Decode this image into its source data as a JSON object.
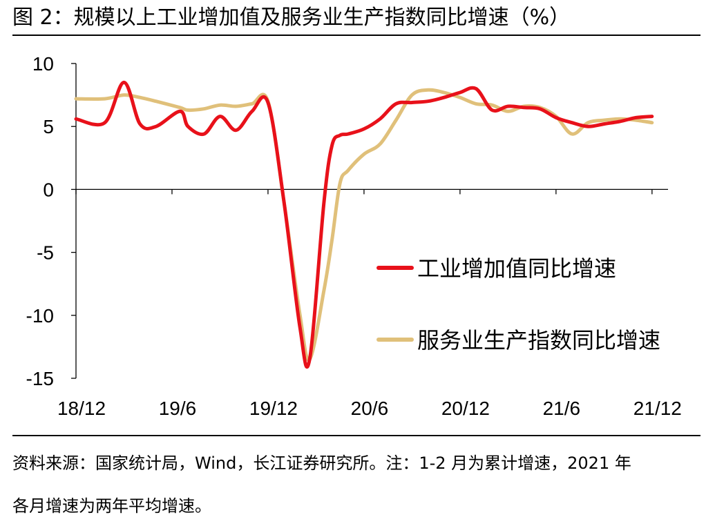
{
  "title": "图 2：规模以上工业增加值及服务业生产指数同比增速（%）",
  "chart_data": {
    "type": "line",
    "title": "规模以上工业增加值及服务业生产指数同比增速（%）",
    "xlabel": "",
    "ylabel": "%",
    "ylim": [
      -15,
      10
    ],
    "y_ticks": [
      10,
      5,
      0,
      -5,
      -10,
      -15
    ],
    "x_tick_labels": [
      "18/12",
      "19/6",
      "19/12",
      "20/6",
      "20/12",
      "21/6",
      "21/12"
    ],
    "x_tick_positions": [
      0,
      6,
      12,
      18,
      24,
      30,
      36
    ],
    "x_range": [
      0,
      37
    ],
    "legend_position": "right-center",
    "series": [
      {
        "name": "工业增加值同比增速",
        "color": "#e8111a",
        "x": [
          0,
          1.8,
          3,
          4,
          5,
          6.5,
          7,
          8,
          9,
          10,
          11,
          12,
          13,
          14,
          14.6,
          15.5,
          16,
          16.5,
          17,
          18,
          19,
          20,
          21,
          22,
          23,
          24,
          25,
          26,
          27,
          28,
          29,
          30,
          31,
          32,
          33,
          34,
          35,
          36
        ],
        "y": [
          5.6,
          5.3,
          8.5,
          5.2,
          5.0,
          6.2,
          5.0,
          4.4,
          5.8,
          4.7,
          6.2,
          6.9,
          -1.0,
          -11.0,
          -13.5,
          -1.0,
          3.5,
          4.3,
          4.4,
          4.8,
          5.6,
          6.8,
          6.9,
          7.0,
          7.3,
          7.7,
          8.0,
          6.3,
          6.6,
          6.5,
          6.4,
          5.7,
          5.3,
          5.0,
          5.2,
          5.4,
          5.7,
          5.8
        ]
      },
      {
        "name": "服务业生产指数同比增速",
        "color": "#e0c07a",
        "x": [
          0,
          1.8,
          3,
          4,
          5,
          6.5,
          7,
          8,
          9,
          10,
          11,
          12,
          13,
          14,
          14.6,
          15.5,
          16,
          16.5,
          17,
          18,
          19,
          20,
          21,
          22,
          23,
          24,
          25,
          26,
          27,
          28,
          29,
          30,
          31,
          32,
          33,
          34,
          35,
          36
        ],
        "y": [
          7.2,
          7.2,
          7.5,
          7.3,
          7.0,
          6.5,
          6.3,
          6.4,
          6.7,
          6.6,
          6.8,
          7.0,
          -1.0,
          -10.0,
          -13.5,
          -8.0,
          -4.0,
          0.5,
          1.5,
          2.8,
          3.6,
          5.5,
          7.5,
          7.9,
          7.7,
          7.3,
          6.8,
          6.7,
          6.2,
          6.6,
          6.5,
          5.8,
          4.4,
          5.3,
          5.5,
          5.6,
          5.5,
          5.3
        ]
      }
    ]
  },
  "source_note_line1": "资料来源：国家统计局，Wind，长江证券研究所。注：1-2 月为累计增速，2021 年",
  "source_note_line2": "各月增速为两年平均增速。"
}
